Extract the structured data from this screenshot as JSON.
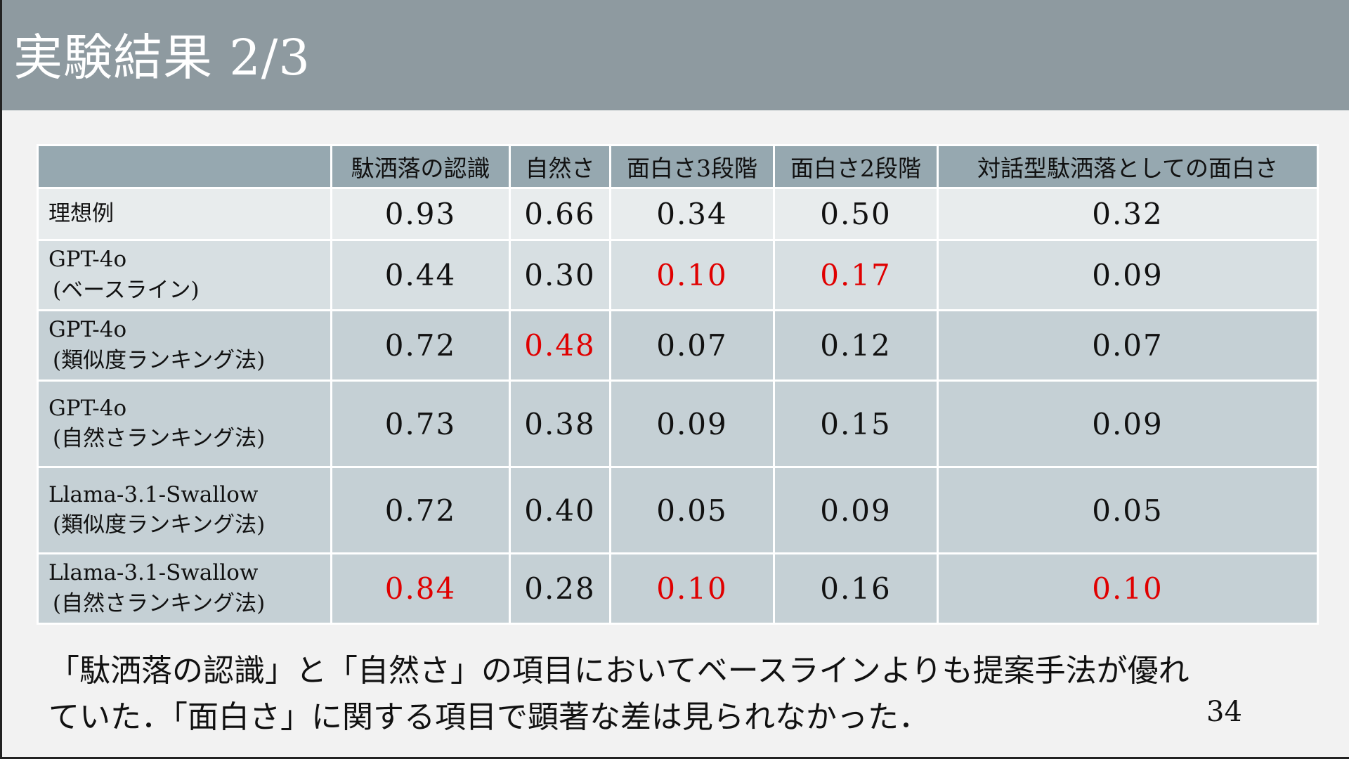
{
  "slide": {
    "title": "実験結果 2/3",
    "summary_line1": "「駄洒落の認識」と「自然さ」の項目においてベースラインよりも提案手法が優れ",
    "summary_line2": "ていた．「面白さ」に関する項目で顕著な差は見られなかった．",
    "page_number": "34"
  },
  "table": {
    "headers": [
      "",
      "駄洒落の認識",
      "自然さ",
      "面白さ3段階",
      "面白さ2段階",
      "対話型駄洒落としての面白さ"
    ],
    "rows": [
      {
        "label": [
          "理想例"
        ],
        "values": [
          "0.93",
          "0.66",
          "0.34",
          "0.50",
          "0.32"
        ],
        "highlighted": [
          false,
          false,
          false,
          false,
          false
        ]
      },
      {
        "label": [
          "GPT-4o",
          "(ベースライン)"
        ],
        "values": [
          "0.44",
          "0.30",
          "0.10",
          "0.17",
          "0.09"
        ],
        "highlighted": [
          false,
          false,
          true,
          true,
          false
        ]
      },
      {
        "label": [
          "GPT-4o",
          "(類似度ランキング法)"
        ],
        "values": [
          "0.72",
          "0.48",
          "0.07",
          "0.12",
          "0.07"
        ],
        "highlighted": [
          false,
          true,
          false,
          false,
          false
        ]
      },
      {
        "label": [
          "GPT-4o",
          "(自然さランキング法)"
        ],
        "values": [
          "0.73",
          "0.38",
          "0.09",
          "0.15",
          "0.09"
        ],
        "highlighted": [
          false,
          false,
          false,
          false,
          false
        ]
      },
      {
        "label": [
          "Llama-3.1-Swallow",
          "(類似度ランキング法)"
        ],
        "values": [
          "0.72",
          "0.40",
          "0.05",
          "0.09",
          "0.05"
        ],
        "highlighted": [
          false,
          false,
          false,
          false,
          false
        ]
      },
      {
        "label": [
          "Llama-3.1-Swallow",
          "(自然さランキング法)"
        ],
        "values": [
          "0.84",
          "0.28",
          "0.10",
          "0.16",
          "0.10"
        ],
        "highlighted": [
          true,
          false,
          true,
          false,
          true
        ]
      }
    ]
  },
  "colors": {
    "title_bar": "#8e9aa0",
    "header_row": "#96a8b0",
    "highlight_text": "#e00000"
  }
}
